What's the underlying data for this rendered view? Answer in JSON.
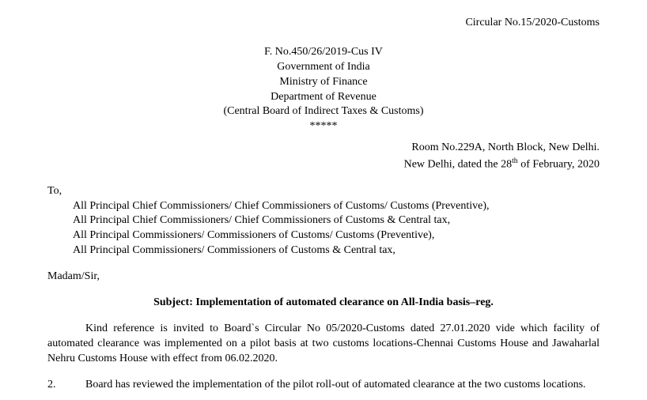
{
  "circular_number": "Circular No.15/2020-Customs",
  "header": {
    "file_no": "F. No.450/26/2019-Cus IV",
    "gov": "Government of India",
    "ministry": "Ministry of Finance",
    "department": "Department of Revenue",
    "board": "(Central Board of Indirect Taxes & Customs)",
    "stars": "*****"
  },
  "address": {
    "room": "Room No.229A, North Block, New Delhi.",
    "date_prefix": "New Delhi, dated the 28",
    "date_sup": "th",
    "date_suffix": " of February, 2020"
  },
  "to": {
    "label": "To,",
    "recipients": [
      "All Principal Chief Commissioners/ Chief Commissioners of Customs/ Customs (Preventive),",
      "All Principal Chief Commissioners/ Chief Commissioners of Customs & Central tax,",
      "All Principal Commissioners/ Commissioners of Customs/ Customs (Preventive),",
      "All Principal Commissioners/ Commissioners of Customs & Central tax,"
    ]
  },
  "salutation": "Madam/Sir,",
  "subject": "Subject: Implementation of automated clearance on All-India basis–reg.",
  "paragraphs": {
    "p1": "Kind reference is invited to Board`s Circular No 05/2020-Customs dated 27.01.2020 vide which facility of automated clearance was implemented on a pilot basis at two customs locations-Chennai Customs House and Jawaharlal Nehru Customs House with effect from 06.02.2020.",
    "p2_num": "2.",
    "p2": "Board has reviewed the implementation of the pilot roll-out of automated clearance at the two customs locations."
  }
}
